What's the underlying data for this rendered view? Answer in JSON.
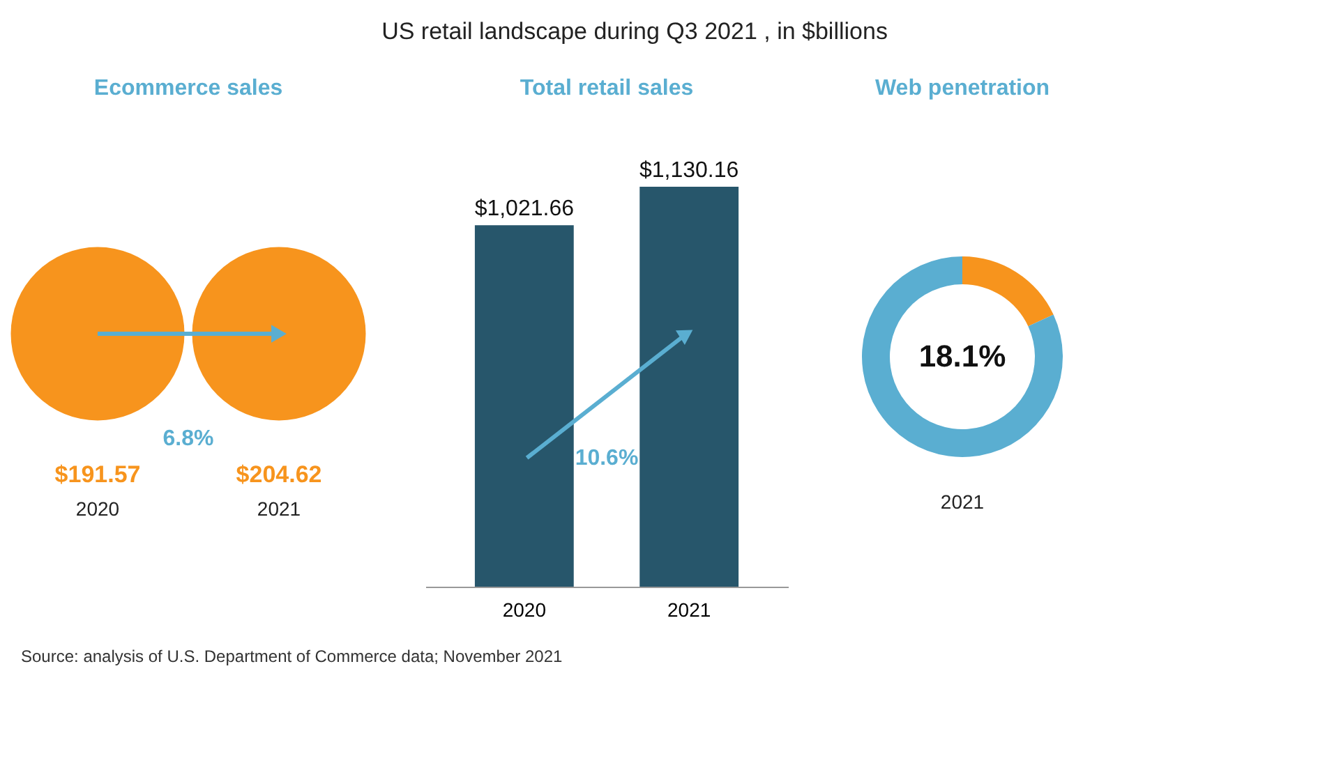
{
  "chart_data": [
    {
      "type": "other",
      "title": "US retail landscape during Q3 2021 , in $billions",
      "annotations": [
        "Source: analysis of U.S. Department of Commerce data; November 2021"
      ]
    },
    {
      "type": "other",
      "title": "Ecommerce sales",
      "categories": [
        "2020",
        "2021"
      ],
      "values": [
        191.57,
        204.62
      ],
      "value_labels": [
        "$191.57",
        "$204.62"
      ],
      "color": "#f7941d",
      "annotations": [
        "6.8%"
      ]
    },
    {
      "type": "bar",
      "title": "Total retail sales",
      "categories": [
        "2020",
        "2021"
      ],
      "values": [
        1021.66,
        1130.16
      ],
      "value_labels": [
        "$1,021.66",
        "$1,130.16"
      ],
      "color": "#27566b",
      "annotations": [
        "10.6%"
      ],
      "tick_labels": "x"
    },
    {
      "type": "donut",
      "title": "Web penetration",
      "categories": [
        null,
        null
      ],
      "values": [
        18.1,
        81.9
      ],
      "colors": [
        "#f7941d",
        "#5aaed1"
      ],
      "value_labels": [
        "18.1%",
        null
      ],
      "xlabel": "2021"
    }
  ]
}
